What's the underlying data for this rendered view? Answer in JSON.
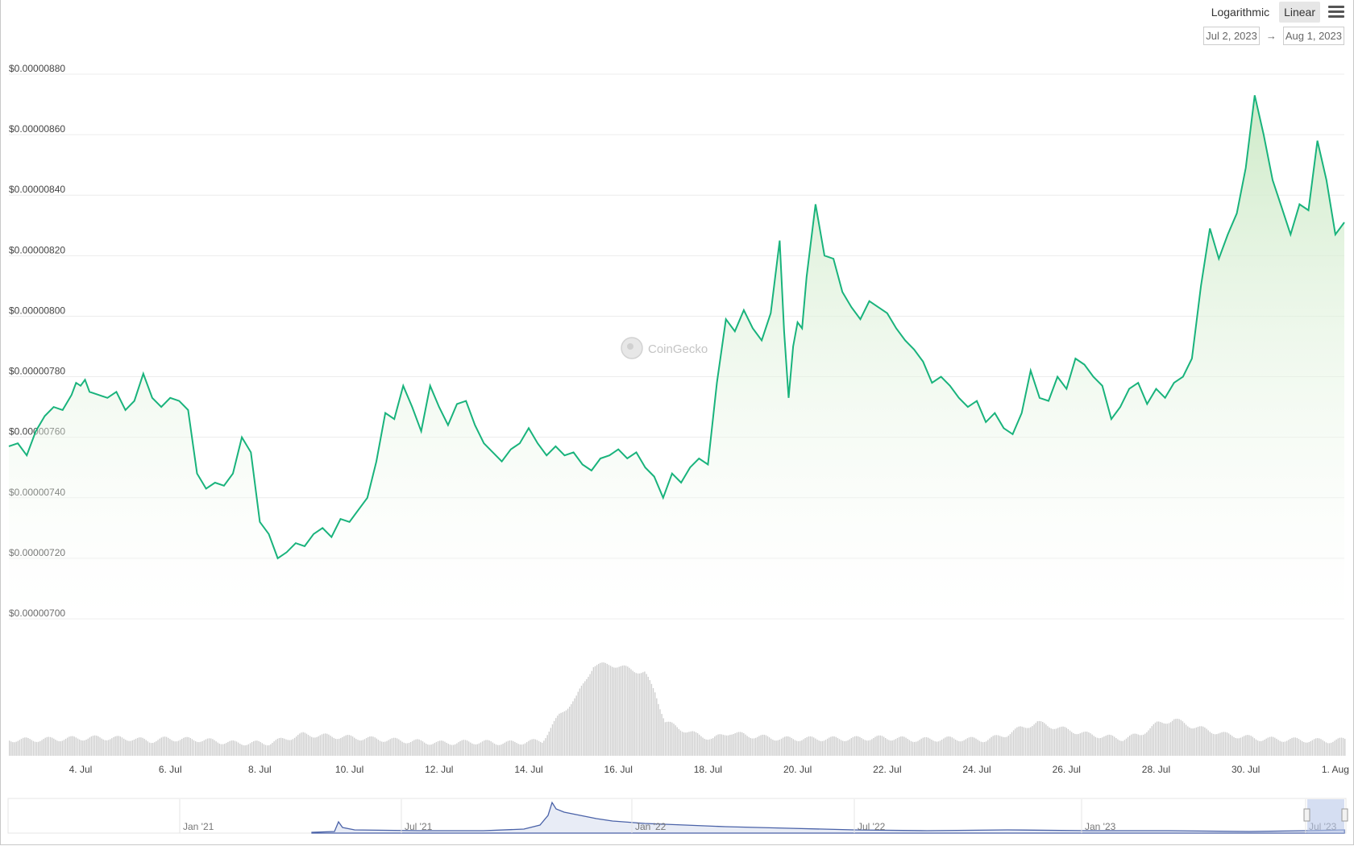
{
  "toolbar": {
    "scale_options": [
      "Logarithmic",
      "Linear"
    ],
    "active_scale": "Linear"
  },
  "range": {
    "from": "Jul 2, 2023",
    "arrow": "→",
    "to": "Aug 1, 2023"
  },
  "watermark": "CoinGecko",
  "colors": {
    "line": "#19b37c",
    "fill": "#d9f0d3",
    "volume": "#cfcfcf",
    "navigator": "#4a62a8"
  },
  "chart_data": {
    "type": "line",
    "title": "",
    "xlabel": "",
    "ylabel": "",
    "y_scale": "linear",
    "ylim": [
      7e-06,
      8.8e-06
    ],
    "xlim": [
      2.4,
      32.2
    ],
    "y_ticks": [
      "$0.00000700",
      "$0.00000720",
      "$0.00000740",
      "$0.00000760",
      "$0.00000780",
      "$0.00000800",
      "$0.00000820",
      "$0.00000840",
      "$0.00000860",
      "$0.00000880"
    ],
    "x_ticks": [
      {
        "label": "4. Jul",
        "day": 4
      },
      {
        "label": "6. Jul",
        "day": 6
      },
      {
        "label": "8. Jul",
        "day": 8
      },
      {
        "label": "10. Jul",
        "day": 10
      },
      {
        "label": "12. Jul",
        "day": 12
      },
      {
        "label": "14. Jul",
        "day": 14
      },
      {
        "label": "16. Jul",
        "day": 16
      },
      {
        "label": "18. Jul",
        "day": 18
      },
      {
        "label": "20. Jul",
        "day": 20
      },
      {
        "label": "22. Jul",
        "day": 22
      },
      {
        "label": "24. Jul",
        "day": 24
      },
      {
        "label": "26. Jul",
        "day": 26
      },
      {
        "label": "28. Jul",
        "day": 28
      },
      {
        "label": "30. Jul",
        "day": 30
      },
      {
        "label": "1. Aug",
        "day": 32
      }
    ],
    "grid": true,
    "legend": "none",
    "series": [
      {
        "values": [
          [
            2.4,
            7.57e-06
          ],
          [
            2.6,
            7.58e-06
          ],
          [
            2.8,
            7.54e-06
          ],
          [
            3.0,
            7.62e-06
          ],
          [
            3.2,
            7.67e-06
          ],
          [
            3.4,
            7.7e-06
          ],
          [
            3.6,
            7.69e-06
          ],
          [
            3.8,
            7.74e-06
          ],
          [
            3.9,
            7.78e-06
          ],
          [
            4.0,
            7.77e-06
          ],
          [
            4.1,
            7.79e-06
          ],
          [
            4.2,
            7.75e-06
          ],
          [
            4.4,
            7.74e-06
          ],
          [
            4.6,
            7.73e-06
          ],
          [
            4.8,
            7.75e-06
          ],
          [
            5.0,
            7.69e-06
          ],
          [
            5.2,
            7.72e-06
          ],
          [
            5.4,
            7.81e-06
          ],
          [
            5.6,
            7.73e-06
          ],
          [
            5.8,
            7.7e-06
          ],
          [
            6.0,
            7.73e-06
          ],
          [
            6.2,
            7.72e-06
          ],
          [
            6.4,
            7.69e-06
          ],
          [
            6.6,
            7.48e-06
          ],
          [
            6.8,
            7.43e-06
          ],
          [
            7.0,
            7.45e-06
          ],
          [
            7.2,
            7.44e-06
          ],
          [
            7.4,
            7.48e-06
          ],
          [
            7.6,
            7.6e-06
          ],
          [
            7.8,
            7.55e-06
          ],
          [
            8.0,
            7.32e-06
          ],
          [
            8.2,
            7.28e-06
          ],
          [
            8.4,
            7.2e-06
          ],
          [
            8.6,
            7.22e-06
          ],
          [
            8.8,
            7.25e-06
          ],
          [
            9.0,
            7.24e-06
          ],
          [
            9.2,
            7.28e-06
          ],
          [
            9.4,
            7.3e-06
          ],
          [
            9.6,
            7.27e-06
          ],
          [
            9.8,
            7.33e-06
          ],
          [
            10.0,
            7.32e-06
          ],
          [
            10.2,
            7.36e-06
          ],
          [
            10.4,
            7.4e-06
          ],
          [
            10.6,
            7.52e-06
          ],
          [
            10.8,
            7.68e-06
          ],
          [
            11.0,
            7.66e-06
          ],
          [
            11.2,
            7.77e-06
          ],
          [
            11.4,
            7.7e-06
          ],
          [
            11.6,
            7.62e-06
          ],
          [
            11.8,
            7.77e-06
          ],
          [
            12.0,
            7.7e-06
          ],
          [
            12.2,
            7.64e-06
          ],
          [
            12.4,
            7.71e-06
          ],
          [
            12.6,
            7.72e-06
          ],
          [
            12.8,
            7.64e-06
          ],
          [
            13.0,
            7.58e-06
          ],
          [
            13.2,
            7.55e-06
          ],
          [
            13.4,
            7.52e-06
          ],
          [
            13.6,
            7.56e-06
          ],
          [
            13.8,
            7.58e-06
          ],
          [
            14.0,
            7.63e-06
          ],
          [
            14.2,
            7.58e-06
          ],
          [
            14.4,
            7.54e-06
          ],
          [
            14.6,
            7.57e-06
          ],
          [
            14.8,
            7.54e-06
          ],
          [
            15.0,
            7.55e-06
          ],
          [
            15.2,
            7.51e-06
          ],
          [
            15.4,
            7.49e-06
          ],
          [
            15.6,
            7.53e-06
          ],
          [
            15.8,
            7.54e-06
          ],
          [
            16.0,
            7.56e-06
          ],
          [
            16.2,
            7.53e-06
          ],
          [
            16.4,
            7.55e-06
          ],
          [
            16.6,
            7.5e-06
          ],
          [
            16.8,
            7.47e-06
          ],
          [
            17.0,
            7.4e-06
          ],
          [
            17.2,
            7.48e-06
          ],
          [
            17.4,
            7.45e-06
          ],
          [
            17.6,
            7.5e-06
          ],
          [
            17.8,
            7.53e-06
          ],
          [
            18.0,
            7.51e-06
          ],
          [
            18.2,
            7.78e-06
          ],
          [
            18.4,
            7.99e-06
          ],
          [
            18.6,
            7.95e-06
          ],
          [
            18.8,
            8.02e-06
          ],
          [
            19.0,
            7.96e-06
          ],
          [
            19.2,
            7.92e-06
          ],
          [
            19.4,
            8.01e-06
          ],
          [
            19.6,
            8.25e-06
          ],
          [
            19.7,
            7.95e-06
          ],
          [
            19.8,
            7.73e-06
          ],
          [
            19.9,
            7.9e-06
          ],
          [
            20.0,
            7.98e-06
          ],
          [
            20.1,
            7.96e-06
          ],
          [
            20.2,
            8.13e-06
          ],
          [
            20.4,
            8.37e-06
          ],
          [
            20.6,
            8.2e-06
          ],
          [
            20.8,
            8.19e-06
          ],
          [
            21.0,
            8.08e-06
          ],
          [
            21.2,
            8.03e-06
          ],
          [
            21.4,
            7.99e-06
          ],
          [
            21.6,
            8.05e-06
          ],
          [
            21.8,
            8.03e-06
          ],
          [
            22.0,
            8.01e-06
          ],
          [
            22.2,
            7.96e-06
          ],
          [
            22.4,
            7.92e-06
          ],
          [
            22.6,
            7.89e-06
          ],
          [
            22.8,
            7.85e-06
          ],
          [
            23.0,
            7.78e-06
          ],
          [
            23.2,
            7.8e-06
          ],
          [
            23.4,
            7.77e-06
          ],
          [
            23.6,
            7.73e-06
          ],
          [
            23.8,
            7.7e-06
          ],
          [
            24.0,
            7.72e-06
          ],
          [
            24.2,
            7.65e-06
          ],
          [
            24.4,
            7.68e-06
          ],
          [
            24.6,
            7.63e-06
          ],
          [
            24.8,
            7.61e-06
          ],
          [
            25.0,
            7.68e-06
          ],
          [
            25.2,
            7.82e-06
          ],
          [
            25.4,
            7.73e-06
          ],
          [
            25.6,
            7.72e-06
          ],
          [
            25.8,
            7.8e-06
          ],
          [
            26.0,
            7.76e-06
          ],
          [
            26.2,
            7.86e-06
          ],
          [
            26.4,
            7.84e-06
          ],
          [
            26.6,
            7.8e-06
          ],
          [
            26.8,
            7.77e-06
          ],
          [
            27.0,
            7.66e-06
          ],
          [
            27.2,
            7.7e-06
          ],
          [
            27.4,
            7.76e-06
          ],
          [
            27.6,
            7.78e-06
          ],
          [
            27.8,
            7.71e-06
          ],
          [
            28.0,
            7.76e-06
          ],
          [
            28.2,
            7.73e-06
          ],
          [
            28.4,
            7.78e-06
          ],
          [
            28.6,
            7.8e-06
          ],
          [
            28.8,
            7.86e-06
          ],
          [
            29.0,
            8.1e-06
          ],
          [
            29.2,
            8.29e-06
          ],
          [
            29.4,
            8.19e-06
          ],
          [
            29.6,
            8.27e-06
          ],
          [
            29.8,
            8.34e-06
          ],
          [
            30.0,
            8.49e-06
          ],
          [
            30.2,
            8.73e-06
          ],
          [
            30.4,
            8.6e-06
          ],
          [
            30.6,
            8.45e-06
          ],
          [
            30.8,
            8.36e-06
          ],
          [
            31.0,
            8.27e-06
          ],
          [
            31.2,
            8.37e-06
          ],
          [
            31.4,
            8.35e-06
          ],
          [
            31.6,
            8.58e-06
          ],
          [
            31.8,
            8.45e-06
          ],
          [
            32.0,
            8.27e-06
          ],
          [
            32.2,
            8.31e-06
          ]
        ]
      }
    ],
    "volume": {
      "values": [
        [
          2.4,
          0.15
        ],
        [
          3.0,
          0.15
        ],
        [
          4.0,
          0.16
        ],
        [
          5.0,
          0.17
        ],
        [
          6.0,
          0.16
        ],
        [
          6.5,
          0.14
        ],
        [
          7.0,
          0.16
        ],
        [
          8.0,
          0.15
        ],
        [
          9.0,
          0.12
        ],
        [
          10.0,
          0.12
        ],
        [
          11.0,
          0.2
        ],
        [
          12.0,
          0.18
        ],
        [
          13.0,
          0.16
        ],
        [
          14.0,
          0.14
        ],
        [
          15.0,
          0.12
        ],
        [
          16.0,
          0.13
        ],
        [
          17.0,
          0.12
        ],
        [
          18.0,
          0.14
        ],
        [
          18.5,
          0.38
        ],
        [
          19.0,
          0.55
        ],
        [
          19.5,
          0.85
        ],
        [
          20.0,
          0.86
        ],
        [
          20.5,
          0.82
        ],
        [
          21.0,
          0.78
        ],
        [
          21.3,
          0.6
        ],
        [
          21.6,
          0.32
        ],
        [
          22.0,
          0.26
        ],
        [
          22.5,
          0.2
        ],
        [
          23.0,
          0.16
        ],
        [
          23.5,
          0.22
        ],
        [
          24.0,
          0.19
        ],
        [
          25.0,
          0.16
        ],
        [
          26.0,
          0.16
        ],
        [
          27.0,
          0.16
        ],
        [
          28.0,
          0.17
        ],
        [
          29.0,
          0.15
        ],
        [
          30.0,
          0.16
        ],
        [
          31.0,
          0.15
        ],
        [
          31.6,
          0.2
        ],
        [
          32.0,
          0.26
        ],
        [
          32.5,
          0.31
        ],
        [
          33.0,
          0.27
        ],
        [
          34.0,
          0.2
        ],
        [
          35.0,
          0.16
        ],
        [
          35.5,
          0.2
        ],
        [
          36.0,
          0.3
        ],
        [
          36.5,
          0.34
        ],
        [
          37.0,
          0.28
        ],
        [
          38.0,
          0.2
        ],
        [
          39.0,
          0.16
        ],
        [
          40.0,
          0.15
        ],
        [
          41.0,
          0.14
        ],
        [
          41.5,
          0.15
        ]
      ]
    },
    "navigator": {
      "labels": [
        "Jan '21",
        "Jul '21",
        "Jan '22",
        "Jul '22",
        "Jan '23",
        "Jul '23"
      ]
    }
  }
}
